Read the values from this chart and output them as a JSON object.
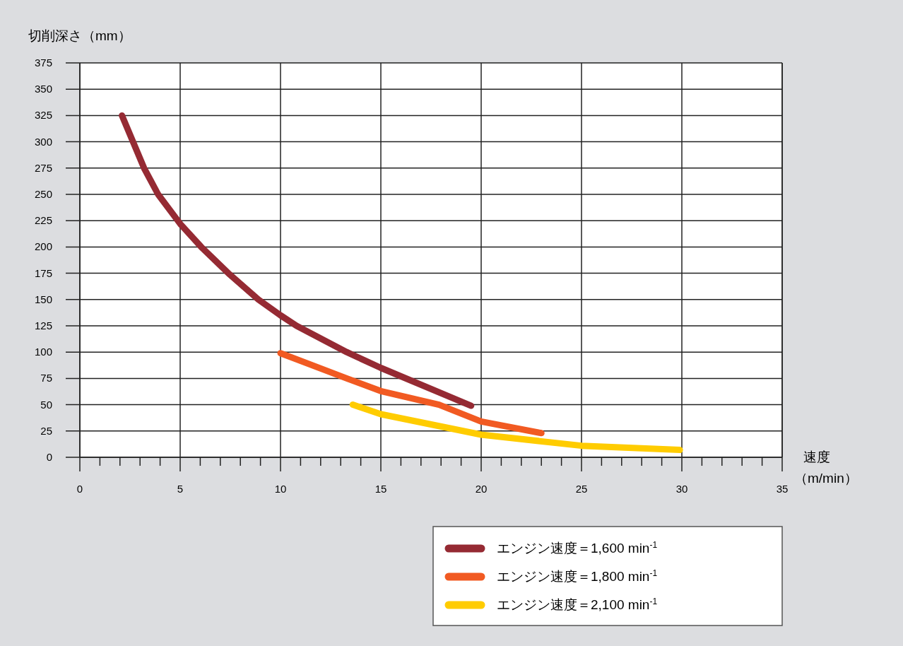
{
  "chart_data": {
    "type": "line",
    "xlabel": "速度（m/min）",
    "ylabel": "切削深さ（mm）",
    "xlim": [
      0,
      35
    ],
    "ylim": [
      0,
      375
    ],
    "xticks": [
      0,
      {
        "value": 1,
        "label": null
      },
      {
        "value": 2,
        "label": null
      },
      {
        "value": 3,
        "label": null
      },
      {
        "value": 4,
        "label": null
      },
      5,
      {
        "value": 6,
        "label": null
      },
      {
        "value": 7,
        "label": null
      },
      {
        "value": 8,
        "label": null
      },
      {
        "value": 9,
        "label": null
      },
      10,
      {
        "value": 11,
        "label": null
      },
      {
        "value": 12,
        "label": null
      },
      {
        "value": 13,
        "label": null
      },
      {
        "value": 14,
        "label": null
      },
      15,
      {
        "value": 16,
        "label": null
      },
      {
        "value": 17,
        "label": null
      },
      {
        "value": 18,
        "label": null
      },
      {
        "value": 19,
        "label": null
      },
      20,
      {
        "value": 21,
        "label": null
      },
      {
        "value": 22,
        "label": null
      },
      {
        "value": 23,
        "label": null
      },
      {
        "value": 24,
        "label": null
      },
      25,
      {
        "value": 26,
        "label": null
      },
      {
        "value": 27,
        "label": null
      },
      {
        "value": 28,
        "label": null
      },
      {
        "value": 29,
        "label": null
      },
      30,
      {
        "value": 31,
        "label": null
      },
      {
        "value": 32,
        "label": null
      },
      {
        "value": 33,
        "label": null
      },
      {
        "value": 34,
        "label": null
      },
      35
    ],
    "yticks": [
      0,
      25,
      50,
      75,
      100,
      125,
      150,
      175,
      200,
      225,
      250,
      275,
      300,
      325,
      350,
      375
    ],
    "grid": true,
    "legend": "bottom right",
    "marker": "none",
    "line_style": "solid",
    "series": [
      {
        "name": "エンジン速度＝1,600 min$^{-1}$",
        "color": "#952a33",
        "x": [
          2.1,
          3.2,
          3.9,
          5,
          6.05,
          7.4,
          8.9,
          10,
          10.8,
          13.3,
          15,
          19.5
        ],
        "values": [
          325,
          275,
          250,
          222,
          200,
          175,
          150,
          135,
          125,
          100,
          85,
          49
        ]
      },
      {
        "name": "エンジン速度＝1,800 min$^{-1}$",
        "color": "#f15a22",
        "x": [
          10,
          13.3,
          15,
          17.9,
          20,
          23
        ],
        "values": [
          99,
          75,
          63,
          50,
          34,
          23
        ]
      },
      {
        "name": "エンジン速度＝2,100 min$^{-1}$",
        "color": "#ffcc00",
        "x": [
          13.6,
          15,
          20,
          25,
          29.9
        ],
        "values": [
          50,
          41,
          21.5,
          11,
          7
        ]
      }
    ]
  }
}
